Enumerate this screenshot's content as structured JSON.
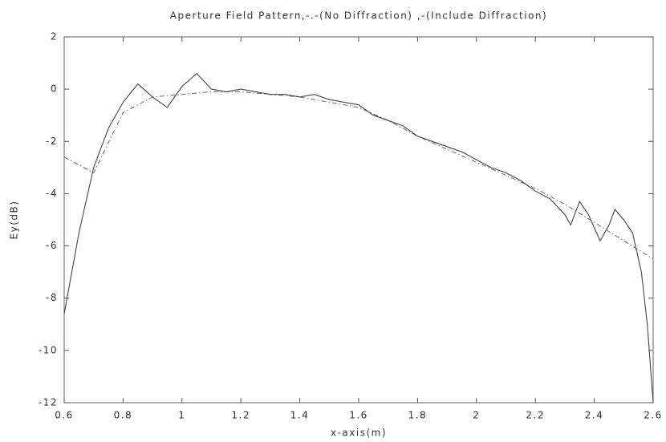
{
  "chart_data": {
    "type": "line",
    "title": "Aperture Field Pattern,-.-(No Diffraction) ,-(Include Diffraction)",
    "xlabel": "x-axis(m)",
    "ylabel": "Ey(dB)",
    "xlim": [
      0.6,
      2.6
    ],
    "xticks": [
      0.6,
      0.8,
      1,
      1.2,
      1.4,
      1.6,
      1.8,
      2,
      2.2,
      2.4,
      2.6
    ],
    "ylim": [
      -12,
      2
    ],
    "yticks": [
      -12,
      -10,
      -8,
      -6,
      -4,
      -2,
      0,
      2
    ],
    "grid": false,
    "series": [
      {
        "color": "#777777",
        "style": "dashdot",
        "x": [
          0.6,
          0.7,
          0.8,
          0.9,
          1.0,
          1.1,
          1.2,
          1.3,
          1.4,
          1.5,
          1.6,
          1.7,
          1.8,
          1.9,
          2.0,
          2.1,
          2.2,
          2.3,
          2.4,
          2.5,
          2.6
        ],
        "values": [
          -2.6,
          -3.2,
          -0.9,
          -0.3,
          -0.2,
          -0.1,
          -0.1,
          -0.2,
          -0.3,
          -0.5,
          -0.7,
          -1.2,
          -1.8,
          -2.3,
          -2.8,
          -3.3,
          -3.8,
          -4.4,
          -5.1,
          -5.8,
          -6.5
        ]
      },
      {
        "color": "#444444",
        "style": "solid",
        "x": [
          0.6,
          0.65,
          0.7,
          0.75,
          0.8,
          0.85,
          0.9,
          0.95,
          1.0,
          1.05,
          1.1,
          1.15,
          1.2,
          1.25,
          1.3,
          1.35,
          1.4,
          1.45,
          1.5,
          1.55,
          1.6,
          1.65,
          1.7,
          1.75,
          1.8,
          1.85,
          1.9,
          1.95,
          2.0,
          2.05,
          2.1,
          2.15,
          2.2,
          2.25,
          2.3,
          2.32,
          2.35,
          2.38,
          2.42,
          2.45,
          2.47,
          2.5,
          2.53,
          2.56,
          2.58,
          2.6
        ],
        "values": [
          -8.6,
          -5.5,
          -3.0,
          -1.5,
          -0.5,
          0.2,
          -0.3,
          -0.7,
          0.1,
          0.6,
          0.0,
          -0.1,
          0.0,
          -0.1,
          -0.2,
          -0.2,
          -0.3,
          -0.2,
          -0.4,
          -0.5,
          -0.6,
          -1.0,
          -1.2,
          -1.4,
          -1.8,
          -2.0,
          -2.2,
          -2.4,
          -2.7,
          -3.0,
          -3.2,
          -3.5,
          -3.9,
          -4.2,
          -4.8,
          -5.2,
          -4.3,
          -4.8,
          -5.8,
          -5.2,
          -4.6,
          -5.0,
          -5.5,
          -7.0,
          -9.0,
          -12.0
        ]
      }
    ]
  }
}
